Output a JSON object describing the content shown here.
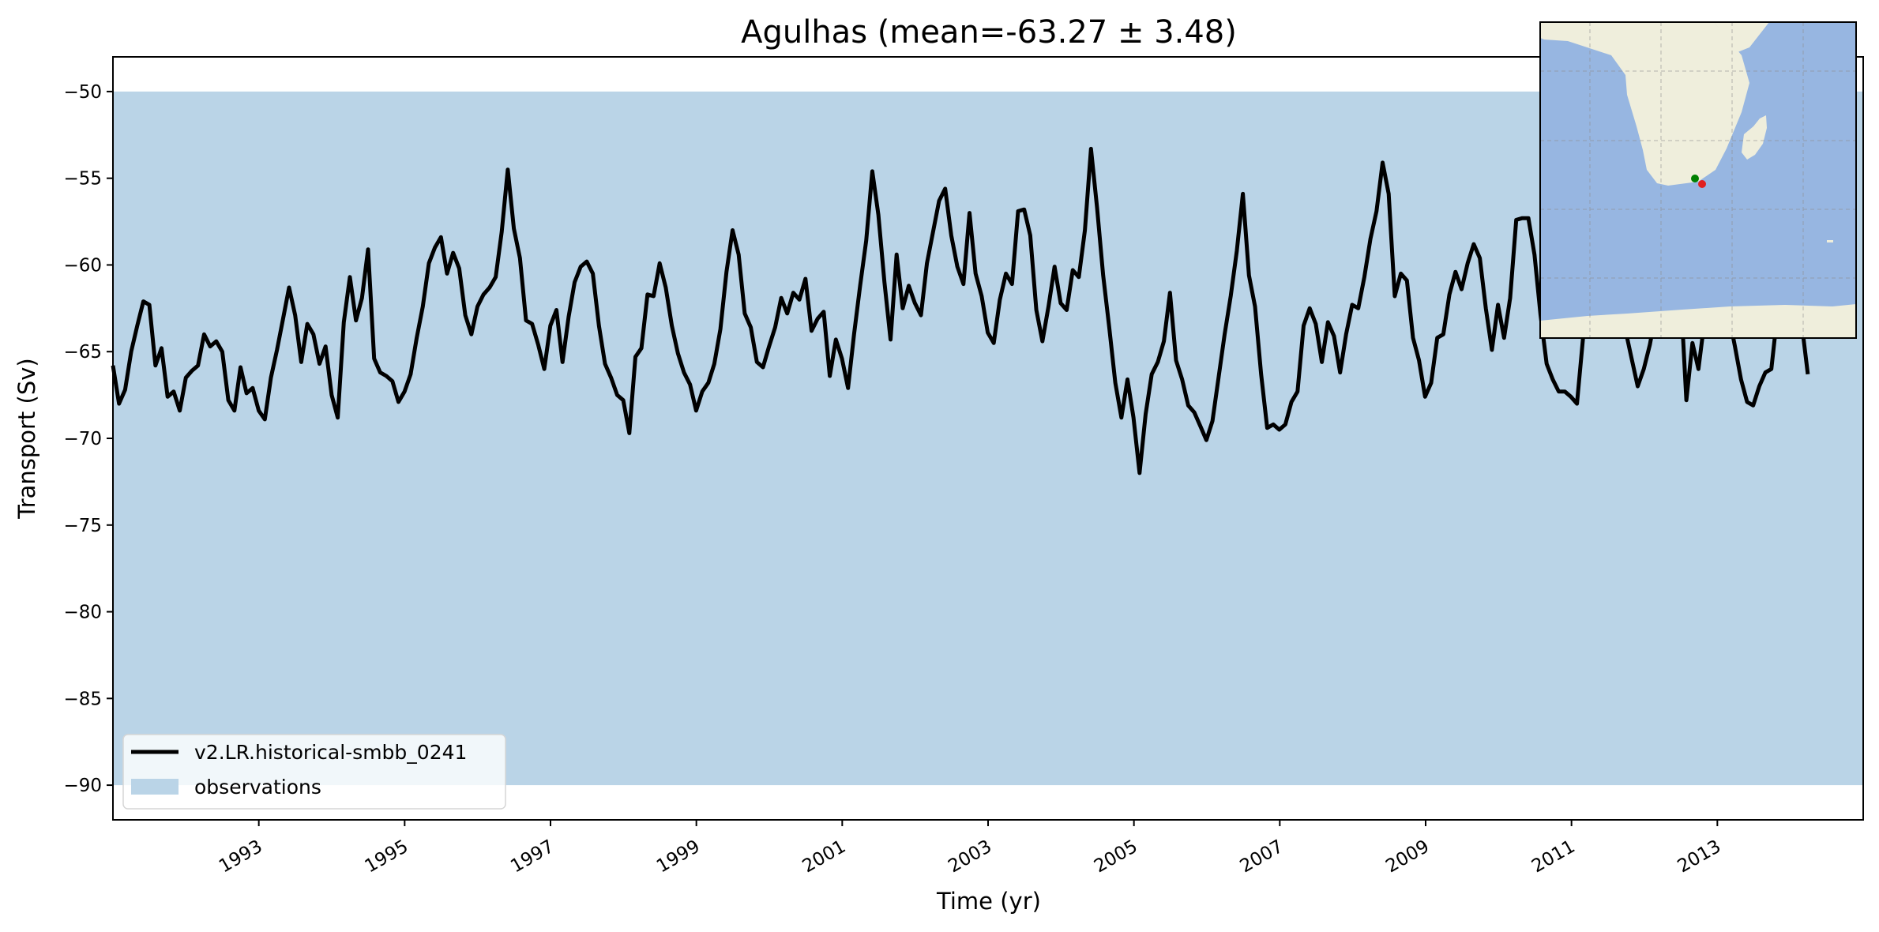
{
  "chart_data": {
    "type": "line",
    "title": "Agulhas (mean=-63.27 ± 3.48)",
    "xlabel": "Time (yr)",
    "ylabel": "Transport (Sv)",
    "xlim": [
      1991.0,
      2015.0
    ],
    "ylim": [
      -92,
      -48
    ],
    "xticks": [
      1993,
      1995,
      1997,
      1999,
      2001,
      2003,
      2005,
      2007,
      2009,
      2011,
      2013
    ],
    "xtick_labels": [
      "1993",
      "1995",
      "1997",
      "1999",
      "2001",
      "2003",
      "2005",
      "2007",
      "2009",
      "2011",
      "2013"
    ],
    "yticks": [
      -50,
      -55,
      -60,
      -65,
      -70,
      -75,
      -80,
      -85,
      -90
    ],
    "ytick_labels": [
      "−50",
      "−55",
      "−60",
      "−65",
      "−70",
      "−75",
      "−80",
      "−85",
      "−90"
    ],
    "grid": false,
    "legend_placement": "lower-left",
    "observations_band": {
      "name": "observations",
      "y_low": -90,
      "y_high": -50,
      "color": "#bad4e7"
    },
    "series": [
      {
        "name": "v2.LR.historical-smbb_0241",
        "color": "#000000",
        "x_start": 1991.0,
        "x_step": 0.0833,
        "values": [
          -65.8,
          -68.0,
          -67.2,
          -65.0,
          -63.5,
          -62.1,
          -62.3,
          -65.8,
          -64.8,
          -67.6,
          -67.3,
          -68.4,
          -66.5,
          -66.1,
          -65.8,
          -64.0,
          -64.7,
          -64.4,
          -65.0,
          -67.8,
          -68.4,
          -65.9,
          -67.4,
          -67.1,
          -68.4,
          -68.9,
          -66.5,
          -64.9,
          -63.1,
          -61.3,
          -62.9,
          -65.6,
          -63.4,
          -64.0,
          -65.7,
          -64.7,
          -67.5,
          -68.8,
          -63.3,
          -60.7,
          -63.2,
          -61.9,
          -59.1,
          -65.4,
          -66.2,
          -66.4,
          -66.7,
          -67.9,
          -67.3,
          -66.3,
          -64.2,
          -62.4,
          -59.9,
          -59.0,
          -58.4,
          -60.5,
          -59.3,
          -60.2,
          -62.9,
          -64.0,
          -62.4,
          -61.7,
          -61.3,
          -60.7,
          -58.1,
          -54.5,
          -57.9,
          -59.6,
          -63.2,
          -63.4,
          -64.6,
          -66.0,
          -63.5,
          -62.6,
          -65.6,
          -63.0,
          -61.0,
          -60.1,
          -59.8,
          -60.5,
          -63.5,
          -65.7,
          -66.5,
          -67.5,
          -67.8,
          -69.7,
          -65.3,
          -64.8,
          -61.7,
          -61.8,
          -59.9,
          -61.3,
          -63.5,
          -65.1,
          -66.2,
          -66.9,
          -68.4,
          -67.3,
          -66.8,
          -65.7,
          -63.7,
          -60.4,
          -58.0,
          -59.4,
          -62.8,
          -63.6,
          -65.6,
          -65.9,
          -64.7,
          -63.6,
          -61.9,
          -62.8,
          -61.6,
          -62.0,
          -60.8,
          -63.8,
          -63.1,
          -62.7,
          -66.4,
          -64.3,
          -65.4,
          -67.1,
          -64.0,
          -61.2,
          -58.6,
          -54.6,
          -57.1,
          -61.0,
          -64.3,
          -59.4,
          -62.5,
          -61.2,
          -62.2,
          -62.9,
          -59.9,
          -58.1,
          -56.3,
          -55.6,
          -58.3,
          -60.1,
          -61.1,
          -57.0,
          -60.5,
          -61.8,
          -63.9,
          -64.5,
          -62.0,
          -60.5,
          -61.1,
          -56.9,
          -56.8,
          -58.3,
          -62.6,
          -64.4,
          -62.4,
          -60.1,
          -62.2,
          -62.6,
          -60.3,
          -60.7,
          -58.0,
          -53.3,
          -56.7,
          -60.6,
          -63.6,
          -66.8,
          -68.8,
          -66.6,
          -68.8,
          -72.0,
          -68.6,
          -66.3,
          -65.6,
          -64.4,
          -61.6,
          -65.5,
          -66.6,
          -68.1,
          -68.5,
          -69.3,
          -70.1,
          -69.0,
          -66.5,
          -64.0,
          -61.8,
          -59.2,
          -55.9,
          -60.6,
          -62.4,
          -66.3,
          -69.4,
          -69.2,
          -69.5,
          -69.2,
          -67.9,
          -67.3,
          -63.5,
          -62.5,
          -63.4,
          -65.6,
          -63.3,
          -64.1,
          -66.2,
          -64.0,
          -62.3,
          -62.5,
          -60.7,
          -58.5,
          -56.9,
          -54.1,
          -55.9,
          -61.8,
          -60.5,
          -60.9,
          -64.2,
          -65.5,
          -67.6,
          -66.8,
          -64.2,
          -64.0,
          -61.7,
          -60.4,
          -61.4,
          -59.9,
          -58.8,
          -59.6,
          -62.5,
          -64.9,
          -62.3,
          -64.2,
          -61.9,
          -57.4,
          -57.3,
          -57.3,
          -59.4,
          -62.9,
          -65.7,
          -66.6,
          -67.3,
          -67.3,
          -67.6,
          -68.0,
          -64.2,
          -62.8,
          -61.0,
          -60.2,
          -59.9,
          -61.5,
          -62.8,
          -63.8,
          -65.4,
          -67.0,
          -66.0,
          -64.6,
          -62.7,
          -61.5,
          -59.1,
          -57.6,
          -61.2,
          -67.8,
          -64.5,
          -66.0,
          -63.2,
          -61.3,
          -60.6,
          -61.2,
          -62.9,
          -64.7,
          -66.6,
          -67.9,
          -68.1,
          -67.0,
          -66.2,
          -66.0,
          -62.8,
          -60.4,
          -59.5,
          -60.8,
          -63.4,
          -66.3
        ]
      }
    ],
    "inset_map": {
      "land_color": "#efeedc",
      "ocean_color": "#97b6e1",
      "markers": [
        {
          "name": "section-start",
          "color": "#008000"
        },
        {
          "name": "section-end",
          "color": "#e02020"
        }
      ]
    }
  }
}
